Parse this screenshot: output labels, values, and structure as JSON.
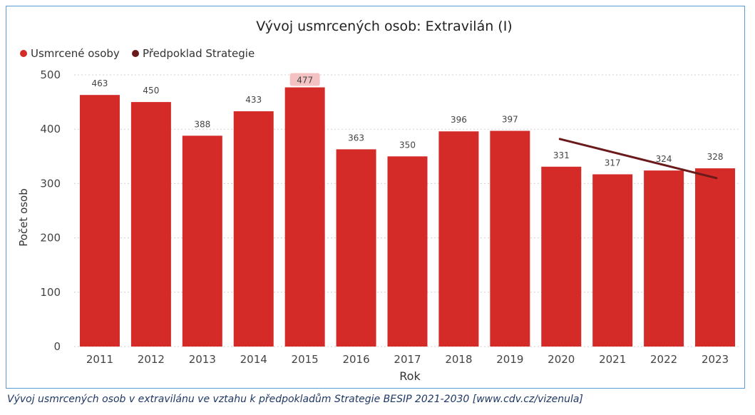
{
  "chart_data": {
    "type": "bar",
    "title": "Vývoj usmrcených osob: Extravilán (I)",
    "xlabel": "Rok",
    "ylabel": "Počet osob",
    "ylim": [
      0,
      500
    ],
    "yticks": [
      "0",
      "100",
      "200",
      "300",
      "400",
      "500"
    ],
    "grid": true,
    "legend": {
      "position": "top-left",
      "items": [
        {
          "label": "Usmrcené osoby",
          "color": "#d42a28"
        },
        {
          "label": "Předpoklad Strategie",
          "color": "#6b1a1a"
        }
      ]
    },
    "categories": [
      "2011",
      "2012",
      "2013",
      "2014",
      "2015",
      "2016",
      "2017",
      "2018",
      "2019",
      "2020",
      "2021",
      "2022",
      "2023"
    ],
    "series": [
      {
        "name": "Usmrcené osoby",
        "type": "bar",
        "color": "#d42a28",
        "values": [
          463,
          450,
          388,
          433,
          477,
          363,
          350,
          396,
          397,
          331,
          317,
          324,
          328
        ],
        "labels": [
          "463",
          "450",
          "388",
          "433",
          "477",
          "363",
          "350",
          "396",
          "397",
          "331",
          "317",
          "324",
          "328"
        ],
        "highlighted_label": "477"
      },
      {
        "name": "Předpoklad Strategie",
        "type": "line",
        "color": "#6b1a1a",
        "x": [
          "2020",
          "2023"
        ],
        "values": [
          382,
          310
        ]
      }
    ]
  },
  "caption": "Vývoj usmrcených osob v extravilánu ve vztahu k předpokladům Strategie BESIP 2021-2030 [www.cdv.cz/vizenula]"
}
